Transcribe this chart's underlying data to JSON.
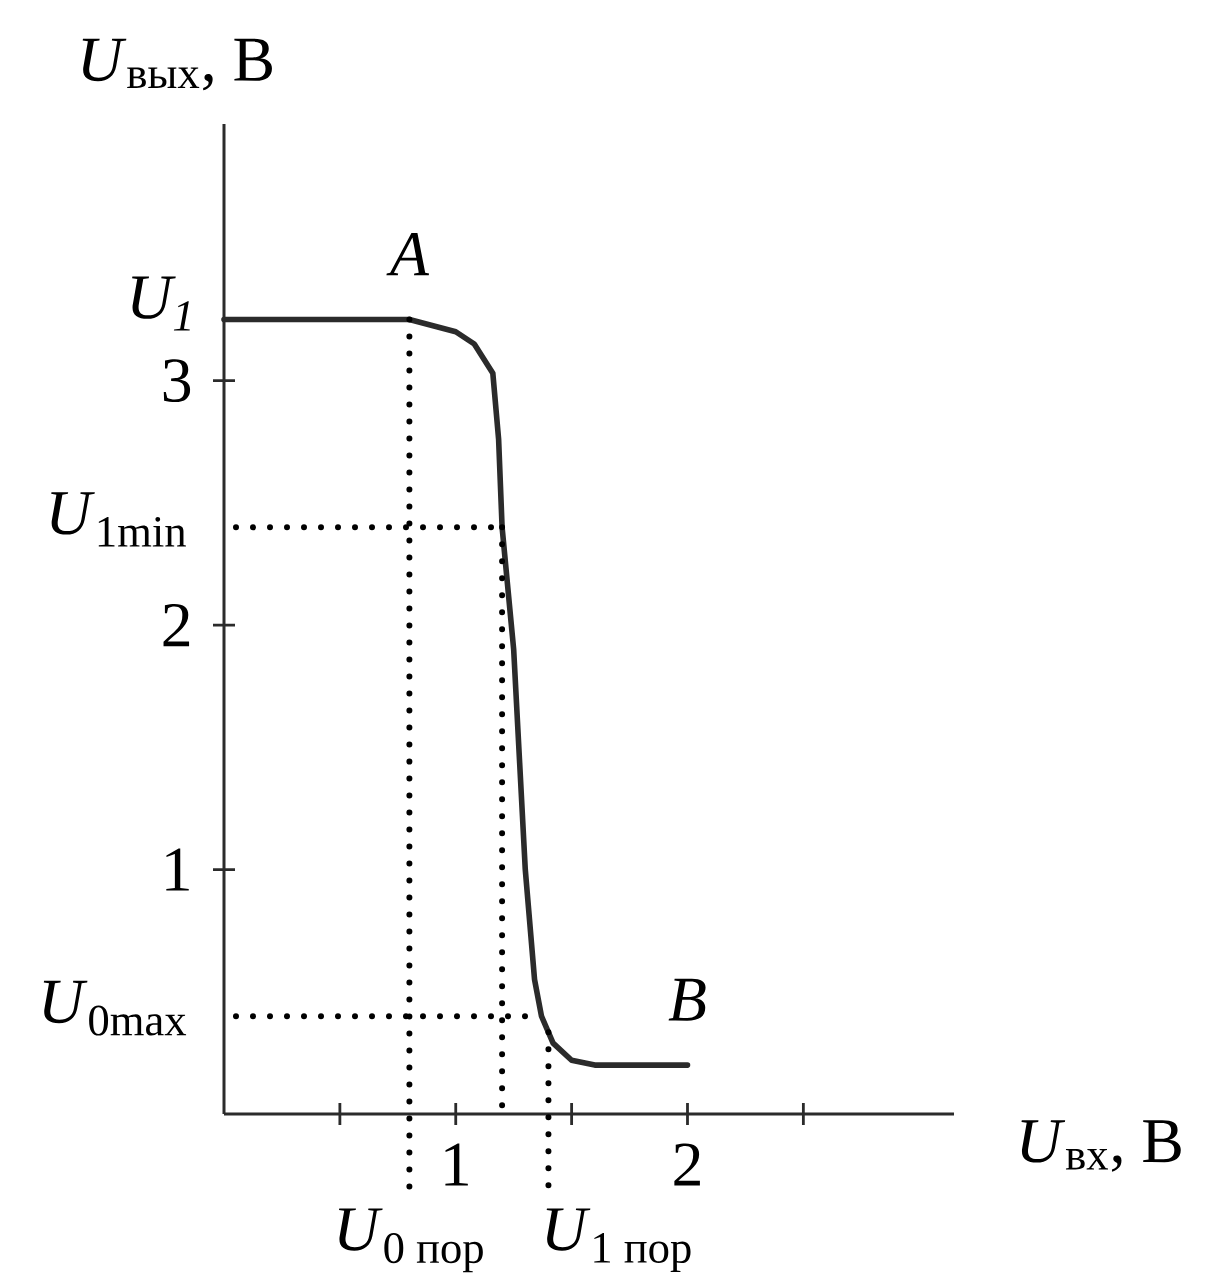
{
  "chart_data": {
    "type": "line",
    "xlabel": "*U*$_{вх}$, В",
    "ylabel": "*U*$_{вых}$, В",
    "x": [
      0,
      0.8,
      1.0,
      1.08,
      1.16,
      1.185,
      1.2,
      1.25,
      1.3,
      1.34,
      1.37,
      1.42,
      1.5,
      1.6,
      2.0
    ],
    "series": [
      {
        "color": "#2b2b2b",
        "values": [
          3.25,
          3.25,
          3.2,
          3.15,
          3.03,
          2.76,
          2.4,
          1.9,
          1.0,
          0.55,
          0.4,
          0.29,
          0.22,
          0.2,
          0.2
        ]
      }
    ],
    "xlim": [
      0,
      3.15
    ],
    "ylim": [
      0,
      4.05
    ],
    "xticks": [
      {
        "value": 0.5,
        "label": null
      },
      1,
      {
        "value": 1.5,
        "label": null
      },
      2,
      {
        "value": 2.5,
        "label": null
      }
    ],
    "yticks": [
      1,
      2,
      3
    ],
    "ref_lines": [
      {
        "axis": "x",
        "value": 0.8,
        "label": "*U*$_{0 пор}$",
        "line_style": "dotted"
      },
      {
        "axis": "x",
        "value": 1.2,
        "line_style": "dotted"
      },
      {
        "axis": "x",
        "value": 1.4,
        "label": "*U*$_{1 пор}$",
        "line_style": "dotted"
      },
      {
        "axis": "y",
        "value": 2.4,
        "label": "*U*$_{1min}$",
        "line_style": "dotted"
      },
      {
        "axis": "y",
        "value": 0.4,
        "label": "*U*$_{0max}$",
        "line_style": "dotted"
      }
    ],
    "annotations": [
      {
        "text": "U$_{1}$",
        "x": 0,
        "y": 3.25
      },
      {
        "text": "A",
        "x": 0.8,
        "y": 3.25
      },
      {
        "text": "B",
        "x": 2.0,
        "y": 0.2
      }
    ]
  }
}
